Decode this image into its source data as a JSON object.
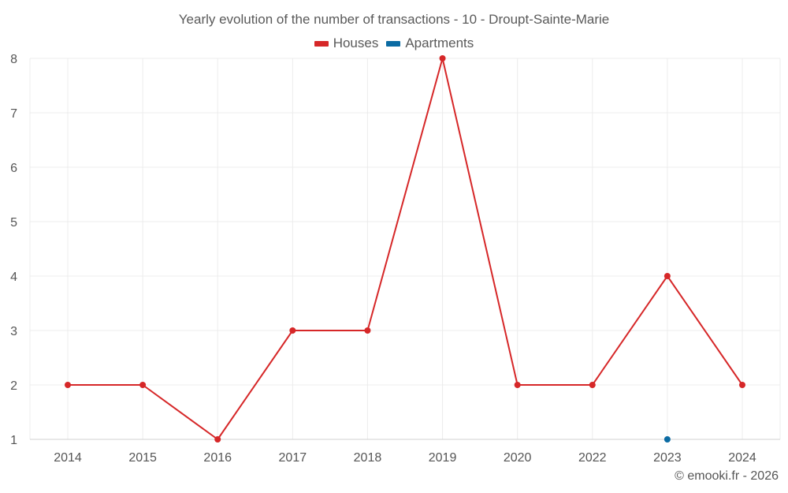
{
  "chart_data": {
    "type": "line",
    "title": "Yearly evolution of the number of transactions - 10 - Droupt-Sainte-Marie",
    "categories": [
      "2014",
      "2015",
      "2016",
      "2017",
      "2018",
      "2019",
      "2020",
      "2022",
      "2023",
      "2024"
    ],
    "series": [
      {
        "name": "Houses",
        "color": "#d62728",
        "values": [
          2,
          2,
          1,
          3,
          3,
          8,
          2,
          2,
          4,
          2
        ]
      },
      {
        "name": "Apartments",
        "color": "#0b6ba3",
        "values": [
          null,
          null,
          null,
          null,
          null,
          null,
          null,
          null,
          1,
          null
        ]
      }
    ],
    "ylim": [
      1,
      8
    ],
    "yticks": [
      1,
      2,
      3,
      4,
      5,
      6,
      7,
      8
    ],
    "grid": true,
    "legend_position": "top-center",
    "xlabel": "",
    "ylabel": ""
  },
  "footer": "© emooki.fr - 2026"
}
